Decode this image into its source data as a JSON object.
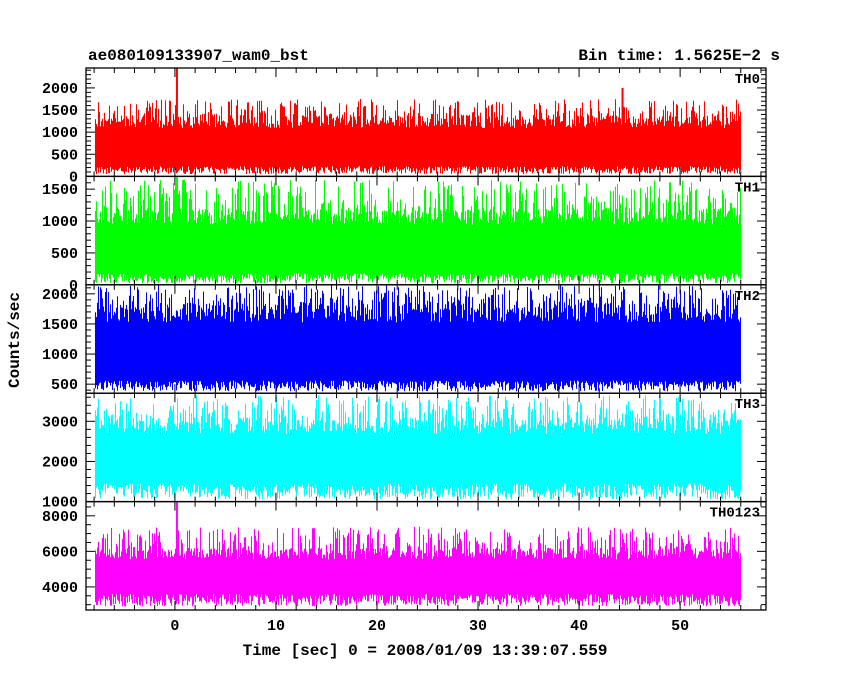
{
  "chart_data": {
    "type": "line",
    "header_left": "ae080109133907_wam0_bst",
    "header_right": "Bin time: 1.5625E−2 s",
    "xlabel": "Time [sec] 0 = 2008/01/09 13:39:07.559",
    "ylabel": "Counts/sec",
    "xlim": [
      -8.8,
      58.5
    ],
    "data_x_range": [
      -8,
      56
    ],
    "x_ticks": [
      0,
      10,
      20,
      30,
      40,
      50
    ],
    "x_tick_labels": [
      "0",
      "10",
      "20",
      "30",
      "40",
      "50"
    ],
    "x_minor_step": 2,
    "panels": [
      {
        "label": "TH0",
        "color": "#ff0000",
        "ylim": [
          0,
          2450
        ],
        "y_ticks": [
          0,
          500,
          1000,
          1500,
          2000
        ],
        "y_tick_labels": [
          "0",
          "500",
          "1000",
          "1500",
          "2000"
        ],
        "y_minor_step": 100,
        "typical_min": 230,
        "typical_max": 1380,
        "floor": 50,
        "peak_max": 1750,
        "spikes": [
          {
            "x": 0.2,
            "y": 2450
          },
          {
            "x": 44.3,
            "y": 2000
          }
        ]
      },
      {
        "label": "TH1",
        "color": "#00ff00",
        "ylim": [
          0,
          1700
        ],
        "y_ticks": [
          0,
          500,
          1000,
          1500
        ],
        "y_tick_labels": [
          "0",
          "500",
          "1000",
          "1500"
        ],
        "y_minor_step": 100,
        "typical_min": 180,
        "typical_max": 1200,
        "floor": 20,
        "peak_max": 1650,
        "spikes": [
          {
            "x": 0.2,
            "y": 1700
          },
          {
            "x": 0.9,
            "y": 1650
          }
        ]
      },
      {
        "label": "TH2",
        "color": "#0000ff",
        "ylim": [
          350,
          2150
        ],
        "y_ticks": [
          500,
          1000,
          1500,
          2000
        ],
        "y_tick_labels": [
          "500",
          "1000",
          "1500",
          "2000"
        ],
        "y_minor_step": 100,
        "typical_min": 560,
        "typical_max": 1850,
        "floor": 380,
        "peak_max": 2150,
        "spikes": []
      },
      {
        "label": "TH3",
        "color": "#00ffff",
        "ylim": [
          1000,
          3700
        ],
        "y_ticks": [
          1000,
          2000,
          3000
        ],
        "y_tick_labels": [
          "1000",
          "2000",
          "3000"
        ],
        "y_minor_step": 200,
        "typical_min": 1450,
        "typical_max": 3100,
        "floor": 1050,
        "peak_max": 3650,
        "spikes": []
      },
      {
        "label": "TH0123",
        "color": "#ff00ff",
        "ylim": [
          2700,
          8800
        ],
        "y_ticks": [
          4000,
          6000,
          8000
        ],
        "y_tick_labels": [
          "4000",
          "6000",
          "8000"
        ],
        "y_minor_step": 500,
        "typical_min": 3600,
        "typical_max": 6200,
        "floor": 2900,
        "peak_max": 7400,
        "spikes": [
          {
            "x": 0.2,
            "y": 8800
          }
        ]
      }
    ]
  }
}
